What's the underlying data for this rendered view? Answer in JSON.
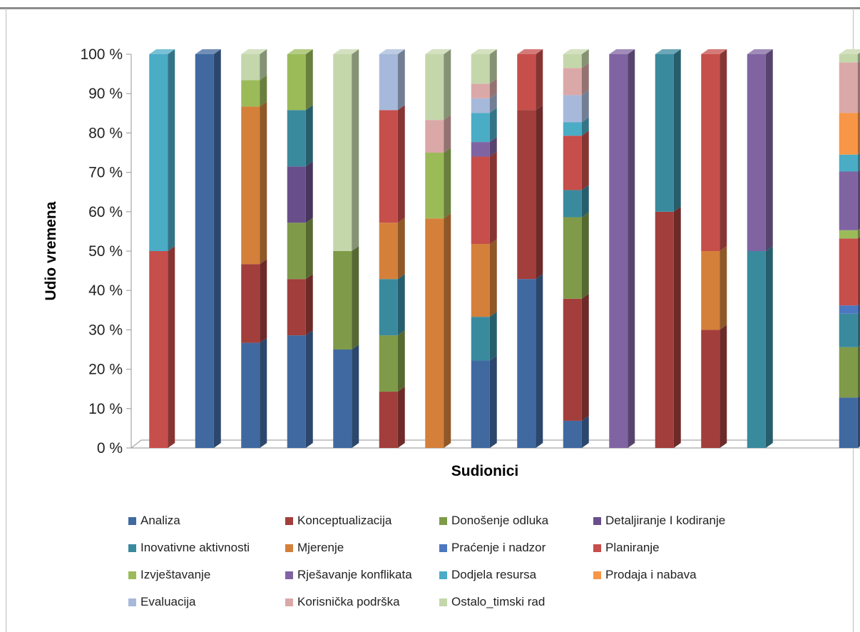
{
  "chart_data": {
    "type": "bar",
    "stacked": true,
    "percent": true,
    "three_d": true,
    "xlabel": "Sudionici",
    "ylabel": "Udio vremena",
    "ylim": [
      0,
      100
    ],
    "y_ticks": [
      "0 %",
      "10 %",
      "20 %",
      "30 %",
      "40 %",
      "50 %",
      "60 %",
      "70 %",
      "80 %",
      "90 %",
      "100 %"
    ],
    "grid": false,
    "legend_position": "bottom",
    "participant_count": 16,
    "series": [
      {
        "name": "Analiza",
        "color": "#4069a0",
        "values": [
          0,
          100,
          26.7,
          28.6,
          25,
          0,
          0,
          22.2,
          42.9,
          6.9,
          0,
          0,
          0,
          0,
          0,
          12.8
        ]
      },
      {
        "name": "Konceptualizacija",
        "color": "#a23e3b",
        "values": [
          0,
          0,
          20,
          14.3,
          0,
          14.3,
          0,
          0,
          42.9,
          31.0,
          0,
          60,
          30,
          0,
          0,
          0
        ]
      },
      {
        "name": "Donošenje odluka",
        "color": "#7f9a48",
        "values": [
          0,
          0,
          0,
          14.3,
          25,
          14.3,
          0,
          0,
          0,
          20.7,
          0,
          0,
          0,
          0,
          0,
          12.8
        ]
      },
      {
        "name": "Detaljiranje I kodiranje",
        "color": "#694f8a",
        "values": [
          0,
          0,
          0,
          14.3,
          0,
          0,
          0,
          0,
          0,
          0,
          0,
          0,
          0,
          0,
          0,
          0
        ]
      },
      {
        "name": "Inovativne aktivnosti",
        "color": "#3a8a9e",
        "values": [
          0,
          0,
          0,
          14.3,
          0,
          14.3,
          0,
          11.1,
          0,
          6.9,
          0,
          40,
          0,
          50,
          0,
          8.5
        ]
      },
      {
        "name": "Mjerenje",
        "color": "#d4803a",
        "values": [
          0,
          0,
          40,
          0,
          0,
          14.3,
          58.3,
          18.5,
          0,
          0,
          0,
          0,
          20,
          0,
          0,
          0
        ]
      },
      {
        "name": "Praćenje i nadzor",
        "color": "#4b78c0",
        "values": [
          0,
          0,
          0,
          0,
          0,
          0,
          0,
          0,
          0,
          0,
          0,
          0,
          0,
          0,
          0,
          2.1
        ]
      },
      {
        "name": "Planiranje",
        "color": "#c64e4b",
        "values": [
          50,
          0,
          0,
          0,
          0,
          28.6,
          0,
          22.2,
          14.2,
          13.8,
          0,
          0,
          50,
          0,
          0,
          17.0
        ]
      },
      {
        "name": "Izvještavanje",
        "color": "#9bbb59",
        "values": [
          0,
          0,
          6.7,
          14.2,
          0,
          0,
          16.7,
          0,
          0,
          0,
          0,
          0,
          0,
          0,
          0,
          2.1
        ]
      },
      {
        "name": "Rješavanje konflikata",
        "color": "#8064a2",
        "values": [
          0,
          0,
          0,
          0,
          0,
          0,
          0,
          3.7,
          0,
          0,
          100,
          0,
          0,
          50,
          0,
          14.9
        ]
      },
      {
        "name": "Dodjela resursa",
        "color": "#4bacc6",
        "values": [
          50,
          0,
          0,
          0,
          0,
          0,
          0,
          7.4,
          0,
          3.4,
          0,
          0,
          0,
          0,
          0,
          4.3
        ]
      },
      {
        "name": "Prodaja i nabava",
        "color": "#f79646",
        "values": [
          0,
          0,
          0,
          0,
          0,
          0,
          0,
          0,
          0,
          0,
          0,
          0,
          0,
          0,
          0,
          10.6
        ]
      },
      {
        "name": "Evaluacija",
        "color": "#a7b9da",
        "values": [
          0,
          0,
          0,
          0,
          0,
          14.2,
          0,
          3.7,
          0,
          6.9,
          0,
          0,
          0,
          0,
          0,
          0
        ]
      },
      {
        "name": "Korisnička podrška",
        "color": "#dba8a8",
        "values": [
          0,
          0,
          0,
          0,
          0,
          0,
          8.3,
          3.7,
          0,
          6.9,
          0,
          0,
          0,
          0,
          0,
          12.8
        ]
      },
      {
        "name": "Ostalo_timski rad",
        "color": "#c4d7ab",
        "values": [
          0,
          0,
          6.6,
          0,
          50,
          0,
          16.7,
          7.5,
          0,
          3.5,
          0,
          0,
          0,
          0,
          0,
          2.1
        ]
      }
    ]
  }
}
